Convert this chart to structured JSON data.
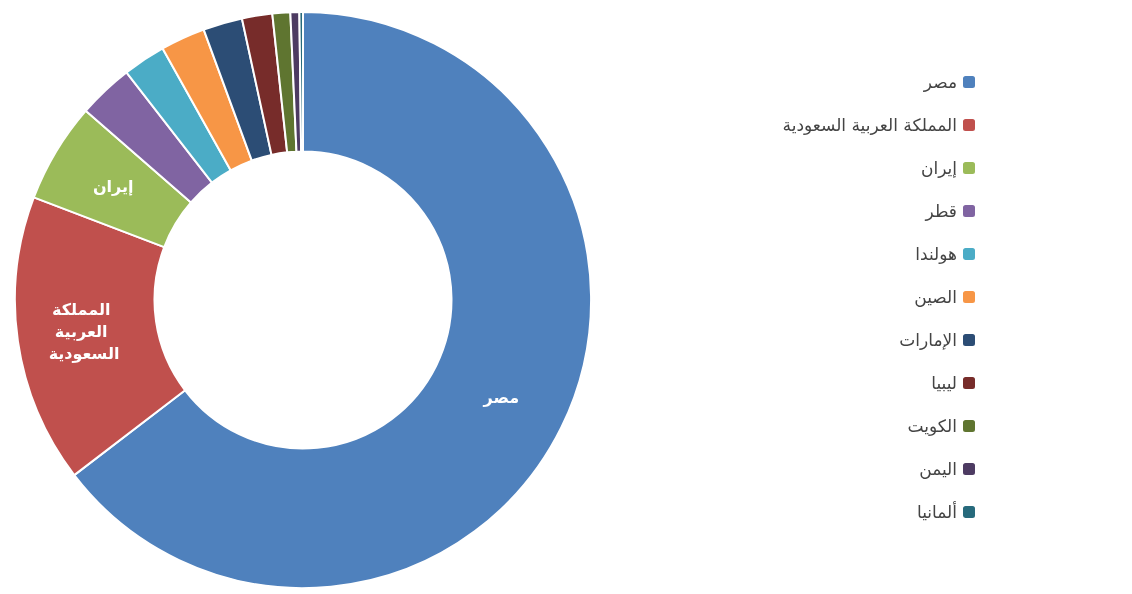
{
  "chart_data": {
    "type": "donut",
    "categories": [
      "مصر",
      "المملكة العربية السعودية",
      "إيران",
      "قطر",
      "هولندا",
      "الصين",
      "الإمارات",
      "ليبيا",
      "الكويت",
      "اليمن",
      "ألمانيا"
    ],
    "values": [
      64.6,
      16.2,
      5.6,
      3.1,
      2.4,
      2.5,
      2.2,
      1.7,
      1.0,
      0.5,
      0.2
    ],
    "colors": [
      "#4f81bd",
      "#c0504d",
      "#9bbb59",
      "#8064a2",
      "#4bacc6",
      "#f79646",
      "#2c4d75",
      "#772c2a",
      "#5f7530",
      "#4d3b62",
      "#276a7c"
    ],
    "annotations": [
      "مصر",
      "المملكة العربية السعودية",
      "إيران"
    ],
    "legend": "right"
  }
}
